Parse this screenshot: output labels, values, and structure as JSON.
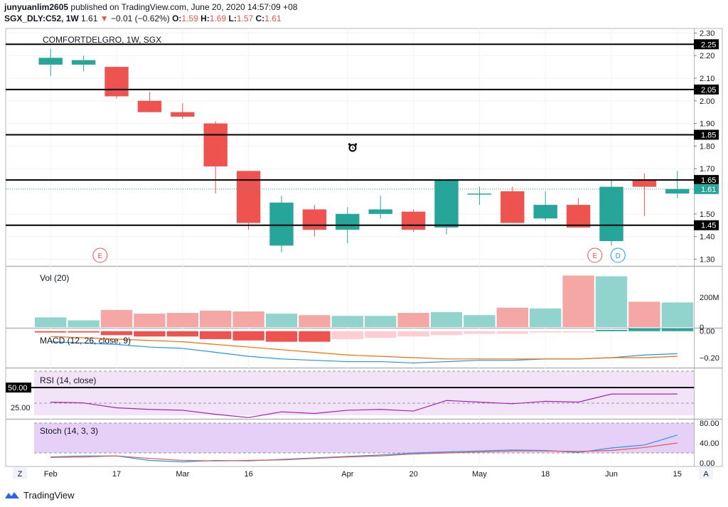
{
  "header": {
    "author": "junyuanlim2605",
    "published_text": "published on TradingView.com, June 20, 2020 14:57:09 +08",
    "symbol": "SGX_DLY:C52, 1W",
    "last": "1.61",
    "change": "−0.01 (−0.62%)",
    "o_label": "O:",
    "o_val": "1.59",
    "h_label": "H:",
    "h_val": "1.69",
    "l_label": "L:",
    "l_val": "1.57",
    "c_label": "C:",
    "c_val": "1.61"
  },
  "chart_data": {
    "type": "candlestick",
    "title": "COMFORTDELGRO, 1W, SGX",
    "x_tick_labels": [
      {
        "bar": 0,
        "label": "Feb"
      },
      {
        "bar": 2,
        "label": "17"
      },
      {
        "bar": 4,
        "label": "Mar"
      },
      {
        "bar": 6,
        "label": "16"
      },
      {
        "bar": 9,
        "label": "Apr"
      },
      {
        "bar": 11,
        "label": "20"
      },
      {
        "bar": 13,
        "label": "May"
      },
      {
        "bar": 15,
        "label": "18"
      },
      {
        "bar": 17,
        "label": "Jun"
      },
      {
        "bar": 19,
        "label": "15"
      }
    ],
    "price_ylim": [
      1.27,
      2.32
    ],
    "price_ticks": [
      "2.30",
      "2.25",
      "2.20",
      "2.10",
      "2.05",
      "2.00",
      "1.90",
      "1.85",
      "1.80",
      "1.70",
      "1.65",
      "1.61",
      "1.50",
      "1.45",
      "1.40",
      "1.30"
    ],
    "price_tick_values": [
      2.3,
      2.2,
      2.1,
      2.0,
      1.9,
      1.8,
      1.7,
      1.5,
      1.4,
      1.3
    ],
    "horizontal_lines": [
      2.25,
      2.05,
      1.85,
      1.65,
      1.45
    ],
    "horizontal_line_labels": [
      "2.25",
      "2.05",
      "1.85",
      "1.65",
      "1.45"
    ],
    "last_price": 1.61,
    "last_price_label": "1.61",
    "candles": [
      {
        "o": 2.16,
        "h": 2.23,
        "l": 2.11,
        "c": 2.19
      },
      {
        "o": 2.16,
        "h": 2.2,
        "l": 2.13,
        "c": 2.18
      },
      {
        "o": 2.15,
        "h": 2.15,
        "l": 2.01,
        "c": 2.02
      },
      {
        "o": 2.0,
        "h": 2.04,
        "l": 1.95,
        "c": 1.95
      },
      {
        "o": 1.95,
        "h": 1.99,
        "l": 1.92,
        "c": 1.93
      },
      {
        "o": 1.9,
        "h": 1.91,
        "l": 1.59,
        "c": 1.71
      },
      {
        "o": 1.69,
        "h": 1.69,
        "l": 1.43,
        "c": 1.46
      },
      {
        "o": 1.36,
        "h": 1.58,
        "l": 1.33,
        "c": 1.55
      },
      {
        "o": 1.52,
        "h": 1.54,
        "l": 1.4,
        "c": 1.43
      },
      {
        "o": 1.43,
        "h": 1.53,
        "l": 1.37,
        "c": 1.5
      },
      {
        "o": 1.5,
        "h": 1.58,
        "l": 1.48,
        "c": 1.52
      },
      {
        "o": 1.51,
        "h": 1.52,
        "l": 1.42,
        "c": 1.43
      },
      {
        "o": 1.44,
        "h": 1.65,
        "l": 1.41,
        "c": 1.65
      },
      {
        "o": 1.59,
        "h": 1.62,
        "l": 1.54,
        "c": 1.59
      },
      {
        "o": 1.6,
        "h": 1.62,
        "l": 1.46,
        "c": 1.46
      },
      {
        "o": 1.48,
        "h": 1.6,
        "l": 1.47,
        "c": 1.54
      },
      {
        "o": 1.54,
        "h": 1.57,
        "l": 1.44,
        "c": 1.44
      },
      {
        "o": 1.38,
        "h": 1.65,
        "l": 1.36,
        "c": 1.62
      },
      {
        "o": 1.65,
        "h": 1.68,
        "l": 1.49,
        "c": 1.62
      },
      {
        "o": 1.59,
        "h": 1.69,
        "l": 1.57,
        "c": 1.61
      }
    ],
    "events": [
      {
        "bar": 1.5,
        "label": "E",
        "color": "#ef5350"
      },
      {
        "bar": 16.5,
        "label": "E",
        "color": "#ef5350"
      },
      {
        "bar": 17.2,
        "label": "D",
        "color": "#2196f3"
      }
    ],
    "volume": {
      "label": "Vol (20)",
      "tick_label": "200M",
      "tick_value": 200,
      "tick0_label": "0",
      "ymax": 400,
      "values": [
        65,
        45,
        115,
        90,
        95,
        110,
        105,
        90,
        80,
        75,
        75,
        95,
        100,
        80,
        130,
        125,
        345,
        340,
        170,
        165
      ]
    },
    "macd": {
      "label": "MACD (12, 26, close, 9)",
      "ticks": [
        "0.00",
        "−0.20"
      ],
      "tick_values": [
        0,
        -0.2
      ],
      "ylim": [
        -0.27,
        0.02
      ],
      "hist": [
        -0.01,
        -0.01,
        -0.03,
        -0.04,
        -0.04,
        -0.06,
        -0.07,
        -0.08,
        -0.08,
        -0.06,
        -0.05,
        -0.04,
        -0.03,
        -0.02,
        -0.02,
        -0.01,
        -0.01,
        0.01,
        0.02,
        0.02
      ],
      "macd_line": [
        -0.08,
        -0.09,
        -0.1,
        -0.12,
        -0.13,
        -0.16,
        -0.19,
        -0.21,
        -0.22,
        -0.23,
        -0.23,
        -0.24,
        -0.23,
        -0.22,
        -0.22,
        -0.21,
        -0.21,
        -0.2,
        -0.18,
        -0.17
      ],
      "signal_line": [
        -0.04,
        -0.05,
        -0.06,
        -0.07,
        -0.08,
        -0.1,
        -0.12,
        -0.14,
        -0.16,
        -0.18,
        -0.19,
        -0.2,
        -0.21,
        -0.21,
        -0.21,
        -0.21,
        -0.21,
        -0.2,
        -0.2,
        -0.19
      ]
    },
    "rsi": {
      "label": "RSI (14, close)",
      "level_label": "50.00",
      "tick_label": "25.00",
      "values": [
        32,
        31,
        25,
        23,
        22,
        17,
        13,
        20,
        18,
        22,
        23,
        21,
        34,
        32,
        30,
        33,
        32,
        42,
        42,
        42
      ]
    },
    "stoch": {
      "label": "Stoch (14, 3, 3)",
      "ticks": [
        "80.00",
        "40.00",
        "0.00"
      ],
      "tick_values": [
        80,
        40,
        0
      ],
      "k": [
        12,
        14,
        14,
        5,
        2,
        5,
        4,
        7,
        10,
        13,
        16,
        20,
        22,
        24,
        26,
        25,
        21,
        30,
        36,
        56
      ],
      "d": [
        11,
        12,
        14,
        9,
        5,
        4,
        5,
        6,
        9,
        12,
        14,
        18,
        20,
        22,
        24,
        24,
        23,
        25,
        31,
        40
      ]
    },
    "colors": {
      "up": "#26a69a",
      "down": "#ef5350",
      "vol_up": "#90d4cd",
      "vol_down": "#f5a7a6",
      "macd": "#2196f3",
      "signal": "#ff6d00",
      "rsi": "#9c27b0",
      "rsi_band": "#f2e3f8",
      "stoch_band": "#e6d0f8",
      "stoch_k": "#2196f3",
      "stoch_d": "#ef5350",
      "hline": "#000000"
    }
  },
  "axis_buttons": {
    "left": "Z",
    "right": "A"
  },
  "footer": {
    "brand": "TradingView"
  }
}
